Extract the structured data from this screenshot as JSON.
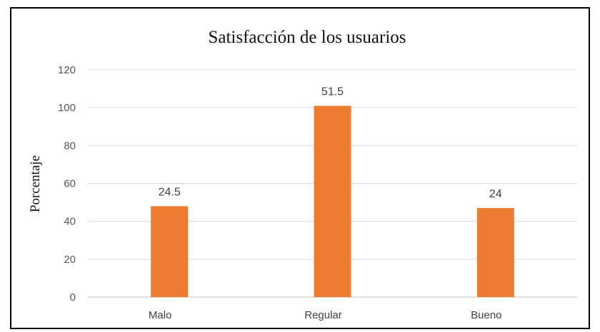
{
  "chart_data": {
    "type": "bar",
    "title": "Satisfacción de los usuarios",
    "xlabel": "",
    "ylabel": "Porcentaje",
    "categories": [
      "Malo",
      "Regular",
      "Bueno"
    ],
    "values": [
      48,
      101,
      47
    ],
    "data_labels": [
      "24.5",
      "51.5",
      "24"
    ],
    "ylim": [
      0,
      120
    ],
    "yticks": [
      0,
      20,
      40,
      60,
      80,
      100,
      120
    ],
    "grid": true,
    "legend": "none",
    "bar_color": "#ed7d31"
  }
}
